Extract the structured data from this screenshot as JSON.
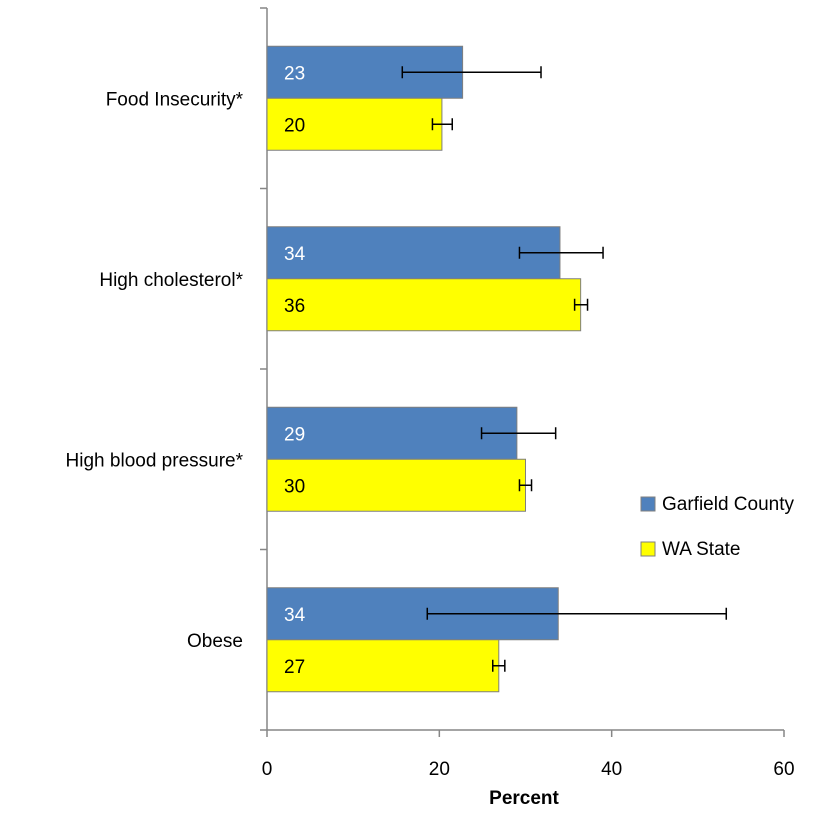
{
  "chart_data": {
    "type": "bar",
    "orientation": "horizontal",
    "categories": [
      "Food Insecurity*",
      "High cholesterol*",
      "High blood pressure*",
      "Obese"
    ],
    "series": [
      {
        "name": "Garfield County",
        "color": "#4f81bd",
        "label_color": "#ffffff",
        "values": [
          23,
          34,
          29,
          34
        ],
        "bar_values": [
          22.7,
          34.0,
          29.0,
          33.8
        ],
        "error_low": [
          15.7,
          29.3,
          24.9,
          18.6
        ],
        "error_high": [
          31.8,
          39.0,
          33.5,
          53.3
        ]
      },
      {
        "name": "WA State",
        "color": "#ffff00",
        "label_color": "#000000",
        "values": [
          20,
          36,
          30,
          27
        ],
        "bar_values": [
          20.3,
          36.4,
          30.0,
          26.9
        ],
        "error_low": [
          19.2,
          35.7,
          29.3,
          26.2
        ],
        "error_high": [
          21.5,
          37.2,
          30.7,
          27.6
        ]
      }
    ],
    "xlabel": "Percent",
    "ylabel": "",
    "xlim": [
      0,
      60
    ],
    "xticks": [
      "0",
      "20",
      "40",
      "60"
    ],
    "grid": false,
    "legend_position": "right"
  }
}
